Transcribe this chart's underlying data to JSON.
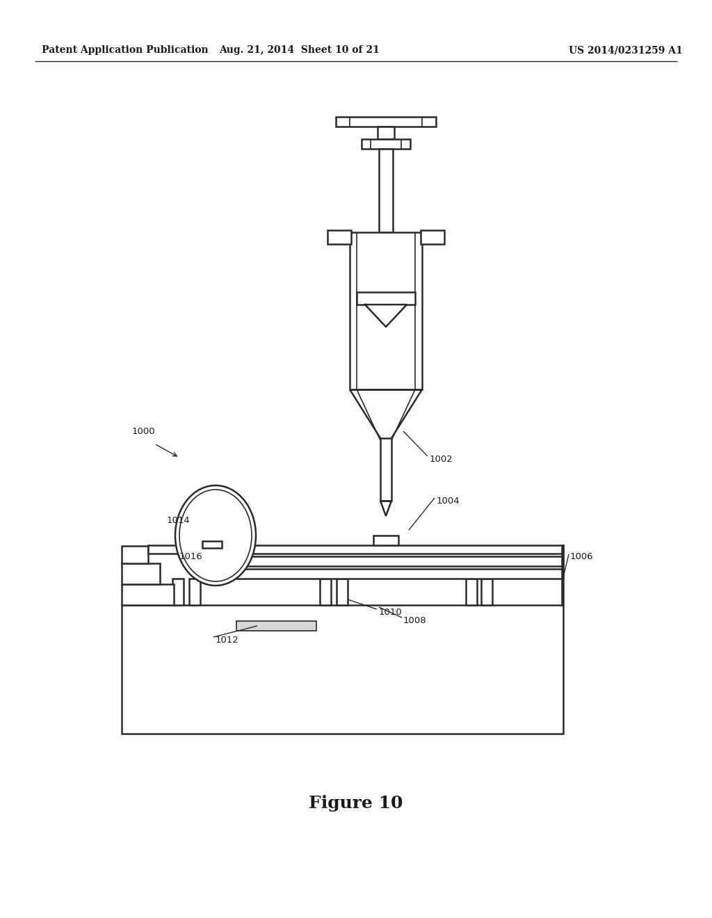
{
  "background_color": "#ffffff",
  "header_left": "Patent Application Publication",
  "header_center": "Aug. 21, 2014  Sheet 10 of 21",
  "header_right": "US 2014/0231259 A1",
  "figure_label": "Figure 10",
  "line_color": "#2a2a2a",
  "line_width": 1.8
}
